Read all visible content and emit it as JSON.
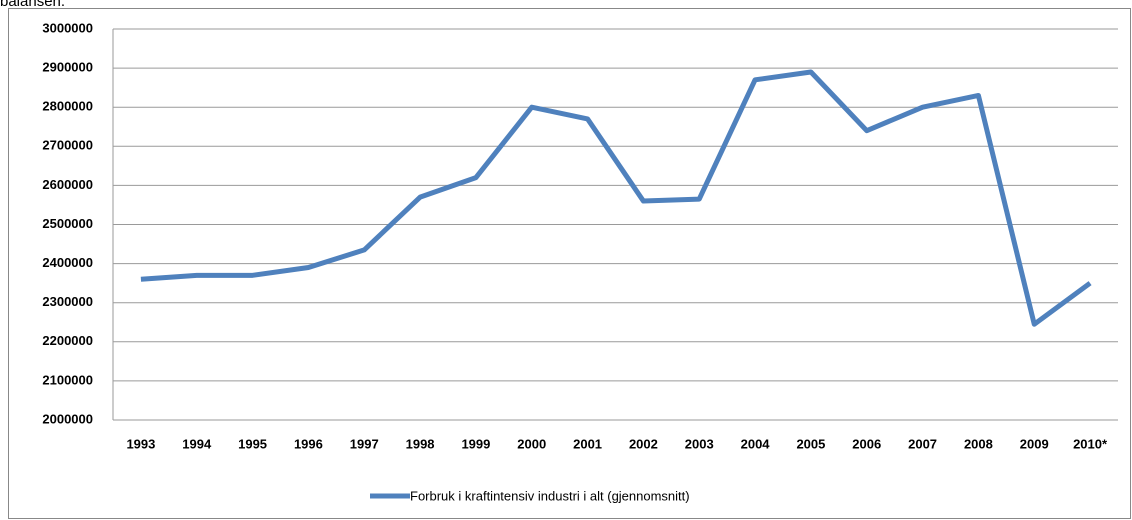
{
  "caption": "balansen.",
  "chart_data": {
    "type": "line",
    "categories": [
      "1993",
      "1994",
      "1995",
      "1996",
      "1997",
      "1998",
      "1999",
      "2000",
      "2001",
      "2002",
      "2003",
      "2004",
      "2005",
      "2006",
      "2007",
      "2008",
      "2009",
      "2010*"
    ],
    "series": [
      {
        "name": "Forbruk i kraftintensiv industri i alt (gjennomsnitt)",
        "color": "#4f81bd",
        "values": [
          2360000,
          2370000,
          2370000,
          2390000,
          2435000,
          2570000,
          2620000,
          2800000,
          2770000,
          2560000,
          2565000,
          2870000,
          2890000,
          2740000,
          2800000,
          2830000,
          2245000,
          2350000
        ]
      }
    ],
    "ylim": [
      2000000,
      3000000
    ],
    "yticks": [
      2000000,
      2100000,
      2200000,
      2300000,
      2400000,
      2500000,
      2600000,
      2700000,
      2800000,
      2900000,
      3000000
    ],
    "grid": true,
    "legend": "bottom"
  }
}
